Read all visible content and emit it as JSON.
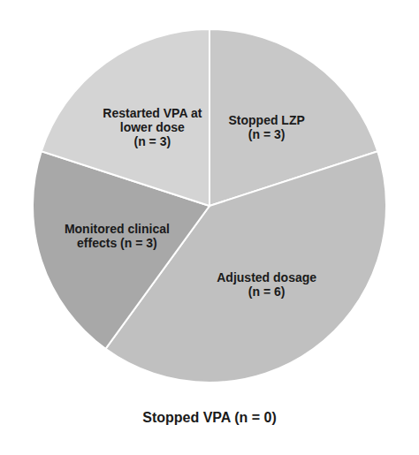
{
  "chart_data": {
    "type": "pie",
    "categories": [
      "Stopped LZP\n(n = 3)",
      "Adjusted dosage\n(n = 6)",
      "Monitored clinical\neffects (n = 3)",
      "Restarted VPA at\nlower dose\n(n = 3)",
      null
    ],
    "values": [
      3,
      6,
      3,
      3,
      0.0001
    ],
    "colors": [
      "#c8c8c8",
      "#c0c0c0",
      "#a8a8a8",
      "#d4d4d4",
      "#d0d0d0"
    ],
    "annotations": [
      "Stopped VPA (n = 0)"
    ]
  }
}
